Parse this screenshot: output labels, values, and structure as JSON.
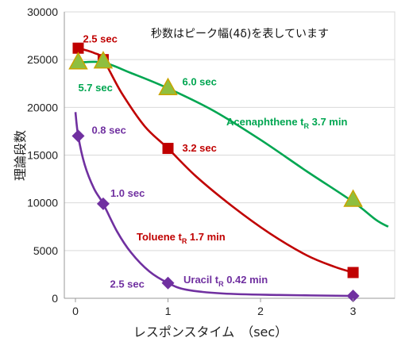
{
  "chart_data": {
    "type": "line",
    "xlabel": "レスポンスタイム　（sec）",
    "ylabel": "理論段数",
    "note": "秒数はピーク幅(4δ)を表しています",
    "xlim": [
      -0.12,
      3.45
    ],
    "ylim": [
      0,
      30000
    ],
    "x_ticks": [
      "0",
      "1",
      "2",
      "3"
    ],
    "y_ticks": [
      "0",
      "5000",
      "10000",
      "15000",
      "20000",
      "25000",
      "30000"
    ],
    "colors": {
      "toluene": "#c00000",
      "acenaphthene": "#00a651",
      "uracil": "#7030a0",
      "marker_green": "#8fbf3f",
      "marker_outline": "#c9a400"
    },
    "series": [
      {
        "key": "toluene",
        "name_parts": [
          "Toluene t",
          "R",
          " 1.7 min"
        ],
        "marker": "square",
        "points": [
          {
            "x": 0.03,
            "y": 26200,
            "label": "2.5 sec"
          },
          {
            "x": 0.3,
            "y": 25000,
            "label": ""
          },
          {
            "x": 1.0,
            "y": 15700,
            "label": "3.2 sec"
          },
          {
            "x": 3.0,
            "y": 2700,
            "label": ""
          }
        ],
        "curve": [
          [
            0.03,
            26200
          ],
          [
            0.2,
            25700
          ],
          [
            0.3,
            25000
          ],
          [
            0.5,
            21500
          ],
          [
            0.75,
            18000
          ],
          [
            1.0,
            15700
          ],
          [
            1.3,
            12800
          ],
          [
            1.7,
            9600
          ],
          [
            2.1,
            6800
          ],
          [
            2.5,
            4500
          ],
          [
            2.8,
            3300
          ],
          [
            3.0,
            2700
          ]
        ]
      },
      {
        "key": "acenaphthene",
        "name_parts": [
          "Acenaphthene t",
          "R",
          " 3.7 min"
        ],
        "marker": "triangle",
        "points": [
          {
            "x": 0.03,
            "y": 24700,
            "label": "5.7 sec"
          },
          {
            "x": 0.3,
            "y": 24800,
            "label": ""
          },
          {
            "x": 1.0,
            "y": 22000,
            "label": "6.0 sec"
          },
          {
            "x": 3.0,
            "y": 10300,
            "label": ""
          }
        ],
        "curve": [
          [
            0.03,
            24700
          ],
          [
            0.3,
            24700
          ],
          [
            0.6,
            23600
          ],
          [
            1.0,
            22000
          ],
          [
            1.5,
            19600
          ],
          [
            2.0,
            16600
          ],
          [
            2.5,
            13300
          ],
          [
            3.0,
            10100
          ],
          [
            3.25,
            8200
          ],
          [
            3.38,
            7500
          ]
        ]
      },
      {
        "key": "uracil",
        "name_parts": [
          "Uracil  t",
          "R",
          " 0.42 min"
        ],
        "marker": "diamond",
        "points": [
          {
            "x": 0.03,
            "y": 17000,
            "label": "0.8 sec"
          },
          {
            "x": 0.3,
            "y": 9900,
            "label": "1.0 sec"
          },
          {
            "x": 1.0,
            "y": 1600,
            "label": "2.5 sec"
          },
          {
            "x": 3.0,
            "y": 250,
            "label": ""
          }
        ],
        "curve": [
          [
            0.0,
            19500
          ],
          [
            0.03,
            17000
          ],
          [
            0.1,
            14000
          ],
          [
            0.2,
            11500
          ],
          [
            0.3,
            9900
          ],
          [
            0.45,
            7000
          ],
          [
            0.6,
            4800
          ],
          [
            0.8,
            2800
          ],
          [
            1.0,
            1600
          ],
          [
            1.2,
            900
          ],
          [
            1.6,
            500
          ],
          [
            2.2,
            350
          ],
          [
            3.0,
            250
          ]
        ]
      }
    ]
  }
}
